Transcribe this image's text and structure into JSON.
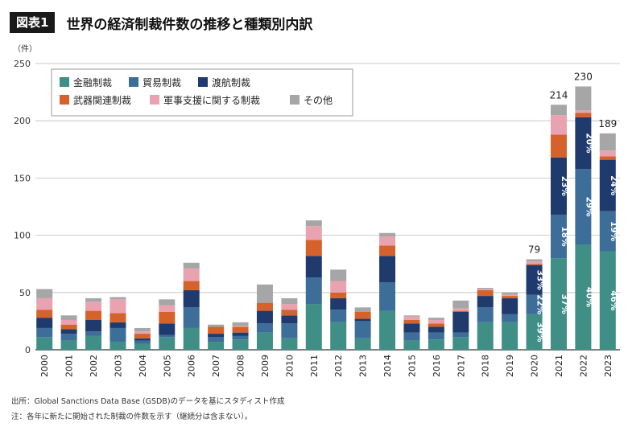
{
  "header": {
    "badge": "図表1",
    "title": "世界の経済制裁件数の推移と種類別内訳"
  },
  "notes": {
    "source": "出所：Global Sanctions Data Base (GSDB)のデータを基にスタディスト作成",
    "note": "注：各年に新たに開始された制裁の件数を示す（継続分は含まない）。"
  },
  "chart_data": {
    "type": "bar",
    "stacked": true,
    "ylabel": "（件）",
    "ylim": [
      0,
      250
    ],
    "yticks": [
      0,
      50,
      100,
      150,
      200,
      250
    ],
    "categories": [
      "2000",
      "2001",
      "2002",
      "2003",
      "2004",
      "2005",
      "2006",
      "2007",
      "2008",
      "2009",
      "2010",
      "2011",
      "2012",
      "2013",
      "2014",
      "2015",
      "2016",
      "2017",
      "2018",
      "2019",
      "2020",
      "2021",
      "2022",
      "2023"
    ],
    "series": [
      {
        "name": "金融制裁",
        "color": "#3f8f86",
        "values": [
          11,
          8,
          12,
          7,
          5,
          11,
          19,
          7,
          9,
          15,
          10,
          40,
          24,
          10,
          34,
          8,
          9,
          11,
          24,
          24,
          31,
          80,
          92,
          86
        ]
      },
      {
        "name": "貿易制裁",
        "color": "#3d6e99",
        "values": [
          8,
          6,
          4,
          12,
          3,
          2,
          18,
          4,
          3,
          8,
          13,
          23,
          11,
          15,
          25,
          7,
          6,
          4,
          13,
          7,
          17,
          38,
          66,
          35
        ]
      },
      {
        "name": "渡航制裁",
        "color": "#1f3a6c",
        "values": [
          9,
          4,
          10,
          5,
          2,
          10,
          15,
          3,
          3,
          11,
          7,
          19,
          10,
          2,
          23,
          8,
          5,
          18,
          10,
          14,
          26,
          50,
          45,
          45
        ]
      },
      {
        "name": "武器関連制裁",
        "color": "#d4622a",
        "values": [
          7,
          4,
          8,
          8,
          4,
          10,
          8,
          6,
          5,
          7,
          5,
          14,
          5,
          6,
          9,
          3,
          3,
          1,
          5,
          2,
          1,
          20,
          4,
          3
        ]
      },
      {
        "name": "軍事支援に関する制裁",
        "color": "#e9a3b0",
        "values": [
          10,
          4,
          8,
          12,
          2,
          6,
          11,
          0,
          1,
          0,
          5,
          12,
          10,
          0,
          8,
          3,
          3,
          2,
          1,
          1,
          2,
          17,
          2,
          5
        ]
      },
      {
        "name": "その他",
        "color": "#a6a6a6",
        "values": [
          8,
          4,
          3,
          2,
          3,
          5,
          5,
          2,
          3,
          16,
          5,
          5,
          10,
          4,
          3,
          1,
          2,
          7,
          1,
          2,
          2,
          9,
          21,
          15
        ]
      }
    ],
    "totals": [
      {
        "year": "2020",
        "label": "79"
      },
      {
        "year": "2021",
        "label": "214"
      },
      {
        "year": "2022",
        "label": "230"
      },
      {
        "year": "2023",
        "label": "189"
      }
    ],
    "share_labels": [
      {
        "year": "2020",
        "series": 0,
        "label": "39%"
      },
      {
        "year": "2020",
        "series": 1,
        "label": "22%"
      },
      {
        "year": "2020",
        "series": 2,
        "label": "33%"
      },
      {
        "year": "2021",
        "series": 0,
        "label": "37%"
      },
      {
        "year": "2021",
        "series": 1,
        "label": "18%"
      },
      {
        "year": "2021",
        "series": 2,
        "label": "23%"
      },
      {
        "year": "2022",
        "series": 0,
        "label": "40%"
      },
      {
        "year": "2022",
        "series": 1,
        "label": "29%"
      },
      {
        "year": "2022",
        "series": 2,
        "label": "20%"
      },
      {
        "year": "2023",
        "series": 0,
        "label": "46%"
      },
      {
        "year": "2023",
        "series": 1,
        "label": "19%"
      },
      {
        "year": "2023",
        "series": 2,
        "label": "24%"
      }
    ]
  }
}
